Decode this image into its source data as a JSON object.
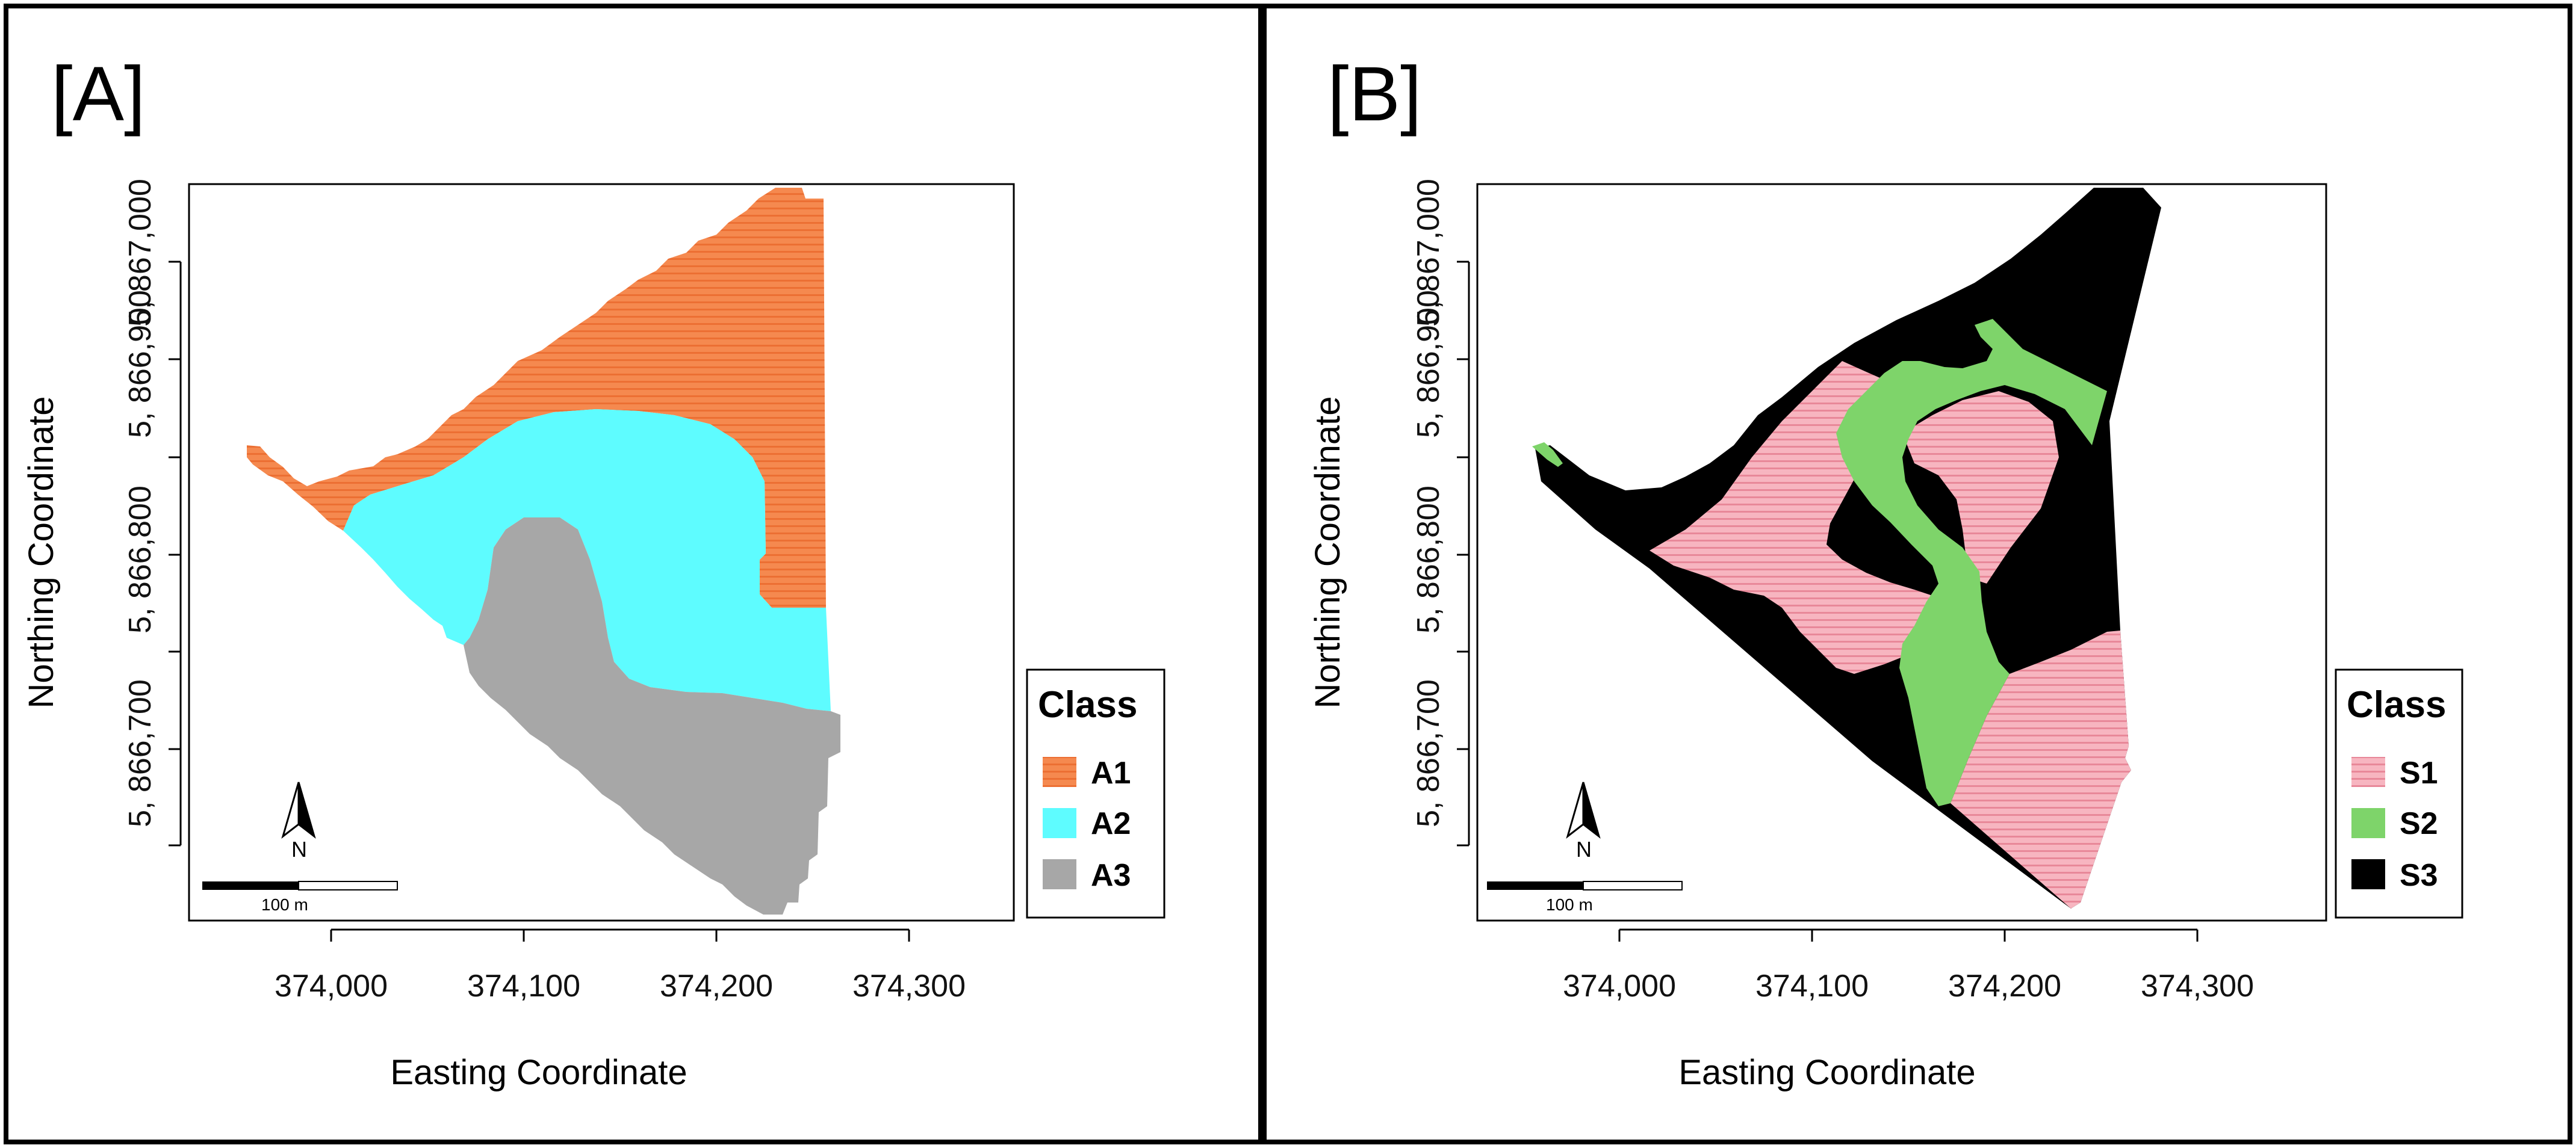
{
  "colors": {
    "A1": "#f5894f",
    "A2": "#5efcff",
    "A3": "#a7a7a7",
    "S1": "#f4a7b4",
    "S2": "#7ed46a",
    "S3": "#000000"
  },
  "panel_a": {
    "label": "[A]",
    "x_ticks": [
      "374,000",
      "374,100",
      "374,200",
      "374,300"
    ],
    "y_ticks": [
      "5, 866,700",
      "5, 866,800",
      "5, 866,900",
      "5, 867,000"
    ],
    "x_title": "Easting Coordinate",
    "y_title": "Northing Coordinate",
    "legend": {
      "title": "Class",
      "items": [
        "A1",
        "A2",
        "A3"
      ]
    },
    "scale": "100 m",
    "north": "N"
  },
  "panel_b": {
    "label": "[B]",
    "x_ticks": [
      "374,000",
      "374,100",
      "374,200",
      "374,300"
    ],
    "y_ticks": [
      "5, 866,700",
      "5, 866,800",
      "5, 866,900",
      "5, 867,000"
    ],
    "x_title": "Easting Coordinate",
    "y_title": "Northing Coordinate",
    "legend": {
      "title": "Class",
      "items": [
        "S1",
        "S2",
        "S3"
      ]
    },
    "scale": "100 m",
    "north": "N"
  }
}
